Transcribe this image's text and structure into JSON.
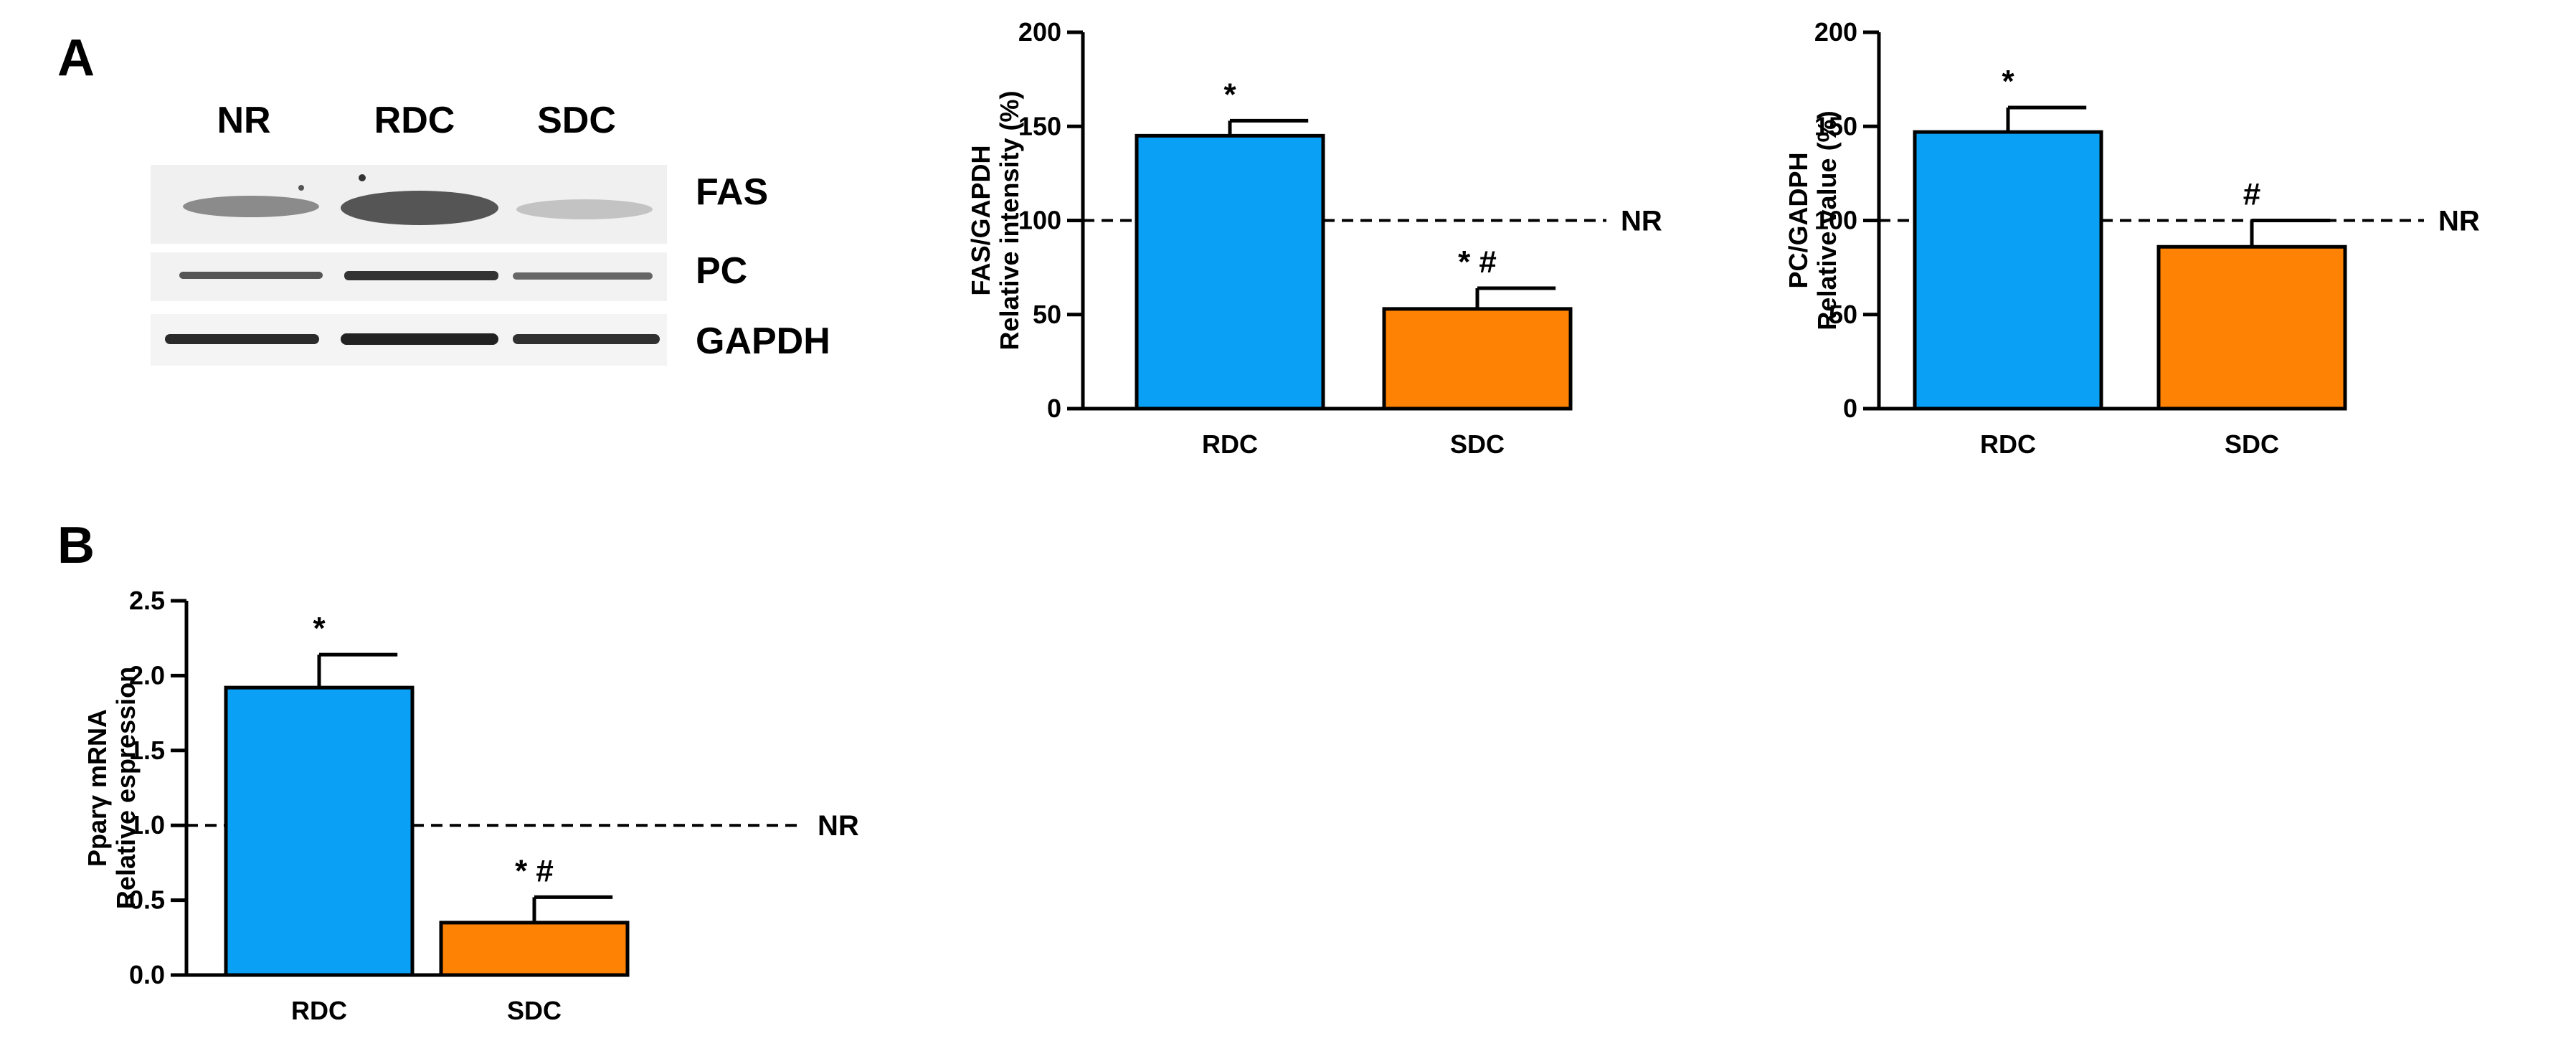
{
  "panels": {
    "a_label": "A",
    "b_label": "B"
  },
  "blot": {
    "lanes": [
      "NR",
      "RDC",
      "SDC"
    ],
    "bands": [
      "FAS",
      "PC",
      "GAPDH"
    ]
  },
  "colors": {
    "rdc": "#0aa0f5",
    "sdc": "#fe8203",
    "axis": "#000000"
  },
  "chart_data": [
    {
      "id": "fas",
      "type": "bar",
      "categories": [
        "RDC",
        "SDC"
      ],
      "values": [
        145,
        53
      ],
      "errors": [
        8,
        11
      ],
      "annotations": [
        "*",
        "* #"
      ],
      "ylabel_lines": [
        "FAS/GAPDH",
        "Relative intensity (%)"
      ],
      "ylim": [
        0,
        200
      ],
      "yticks": [
        0,
        50,
        100,
        150,
        200
      ],
      "tick_labels": [
        "0",
        "50",
        "100",
        "150",
        "200"
      ],
      "reference": {
        "value": 100,
        "label": "NR"
      }
    },
    {
      "id": "pc",
      "type": "bar",
      "categories": [
        "RDC",
        "SDC"
      ],
      "values": [
        147,
        86
      ],
      "errors": [
        13,
        14
      ],
      "annotations": [
        "*",
        "#"
      ],
      "ylabel_lines": [
        "PC/GADPH",
        "Relative value (%)"
      ],
      "ylim": [
        0,
        200
      ],
      "yticks": [
        0,
        50,
        100,
        150,
        200
      ],
      "tick_labels": [
        "0",
        "50",
        "100",
        "150",
        "200"
      ],
      "reference": {
        "value": 100,
        "label": "NR"
      }
    },
    {
      "id": "ppar",
      "type": "bar",
      "categories": [
        "RDC",
        "SDC"
      ],
      "values": [
        1.92,
        0.35
      ],
      "errors": [
        0.22,
        0.17
      ],
      "annotations": [
        "*",
        "* #"
      ],
      "ylabel_lines": [
        "Pparγ mRNA",
        "Relative espression"
      ],
      "ylim": [
        0,
        2.5
      ],
      "yticks": [
        0,
        0.5,
        1.0,
        1.5,
        2.0,
        2.5
      ],
      "tick_labels": [
        "0.0",
        "0.5",
        "1.0",
        "1.5",
        "2.0",
        "2.5"
      ],
      "reference": {
        "value": 1.0,
        "label": "NR"
      }
    }
  ]
}
